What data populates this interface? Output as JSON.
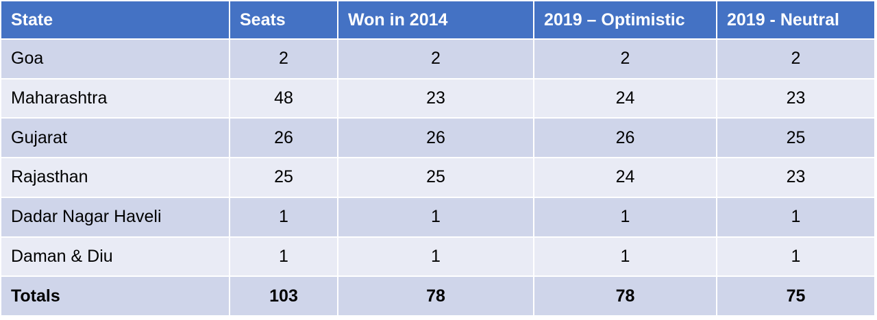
{
  "table": {
    "headers": [
      "State",
      "Seats",
      "Won in 2014",
      "2019 – Optimistic",
      "2019 - Neutral"
    ],
    "rows": [
      [
        "Goa",
        "2",
        "2",
        "2",
        "2"
      ],
      [
        "Maharashtra",
        "48",
        "23",
        "24",
        "23"
      ],
      [
        "Gujarat",
        "26",
        "26",
        "26",
        "25"
      ],
      [
        "Rajasthan",
        "25",
        "25",
        "24",
        "23"
      ],
      [
        "Dadar Nagar Haveli",
        "1",
        "1",
        "1",
        "1"
      ],
      [
        "Daman & Diu",
        "1",
        "1",
        "1",
        "1"
      ]
    ],
    "totals": [
      "Totals",
      "103",
      "78",
      "78",
      "75"
    ]
  },
  "colors": {
    "header_bg": "#4472c4",
    "row_dark": "#cfd5ea",
    "row_light": "#e9ebf5"
  }
}
